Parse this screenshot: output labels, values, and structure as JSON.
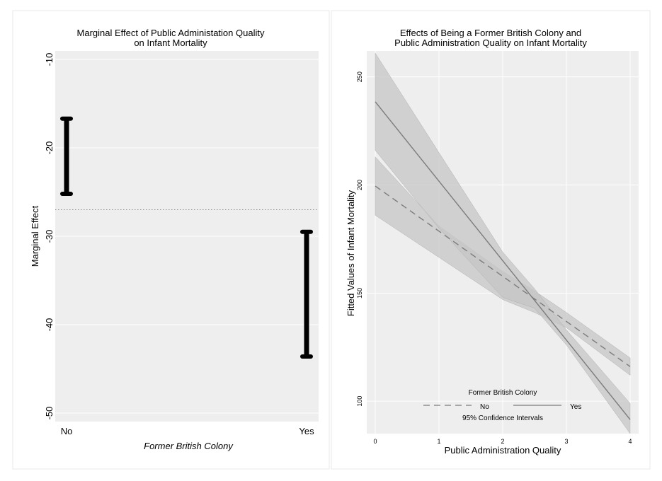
{
  "chart_data": [
    {
      "type": "errorbar",
      "title_lines": [
        "Marginal Effect of Public Administation Quality",
        "on Infant Mortality"
      ],
      "xlabel": "Former British Colony",
      "ylabel": "Marginal Effect",
      "categories": [
        "No",
        "Yes"
      ],
      "intervals": [
        {
          "category": "No",
          "low": -25.2,
          "high": -16.7
        },
        {
          "category": "Yes",
          "low": -43.6,
          "high": -29.5
        }
      ],
      "reference_line": -27.0,
      "ylim": [
        -50,
        -10
      ],
      "yticks": [
        -10,
        -20,
        -30,
        -40,
        -50
      ],
      "ytick_labels": [
        "-10",
        "-20",
        "-30",
        "-40",
        "-50"
      ],
      "grid": true
    },
    {
      "type": "line",
      "title_lines": [
        "Effects of Being a Former British Colony and",
        "Public Administration Quality on Infant Mortality"
      ],
      "xlabel": "Public Administration Quality",
      "ylabel": "Fitted Values of Infant Mortality",
      "xlim": [
        0,
        4
      ],
      "xticks": [
        0,
        1,
        2,
        3,
        4
      ],
      "xtick_labels": [
        "0",
        "1",
        "2",
        "3",
        "4"
      ],
      "ylim": [
        85,
        262
      ],
      "yticks": [
        100,
        150,
        200,
        250
      ],
      "ytick_labels": [
        "100",
        "150",
        "200",
        "250"
      ],
      "grid": true,
      "series": [
        {
          "name": "No",
          "style": "dashed",
          "x": [
            0,
            4
          ],
          "y": [
            199.5,
            116
          ],
          "ci_x": [
            0,
            1,
            2,
            2.5,
            3,
            4
          ],
          "ci_lower": [
            186,
            166.5,
            147,
            141,
            134,
            112
          ],
          "ci_upper": [
            213,
            181,
            160,
            151,
            141,
            120
          ]
        },
        {
          "name": "Yes",
          "style": "solid",
          "x": [
            0,
            4
          ],
          "y": [
            238.5,
            91.5
          ],
          "ci_x": [
            0,
            1,
            2,
            2.5,
            3,
            4
          ],
          "ci_lower": [
            216,
            180,
            148,
            143,
            126,
            85
          ],
          "ci_upper": [
            261,
            215,
            169,
            152,
            133,
            99
          ]
        }
      ],
      "legend": {
        "title": "Former British Colony",
        "note": "95% Confidence Intervals",
        "placement": "bottom-inside"
      }
    }
  ],
  "colors": {
    "plot_background": "#eeeeee",
    "ci_band": "#c6c6c6",
    "fit_line": "#7c7c7c",
    "marginal_effect_bars": "#000000"
  }
}
